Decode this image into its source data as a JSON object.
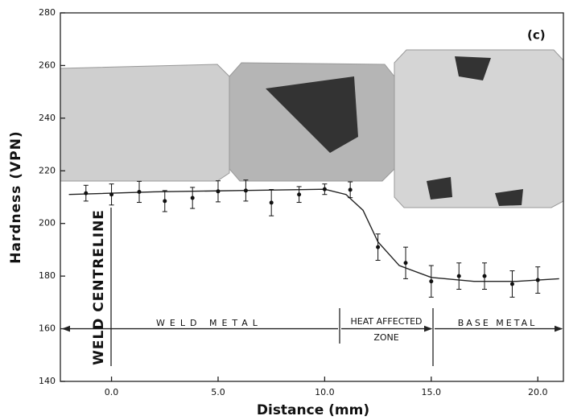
{
  "chart_data": {
    "type": "scatter",
    "panel_label": "(c)",
    "xlabel": "Distance (mm)",
    "ylabel": "Hardness (VPN)",
    "xlim": [
      -2.4,
      21.2
    ],
    "ylim": [
      140,
      280
    ],
    "xticks": [
      {
        "value": 0,
        "label": "0.0"
      },
      {
        "value": 5,
        "label": "5.0"
      },
      {
        "value": 10,
        "label": "10.0"
      },
      {
        "value": 15,
        "label": "15.0"
      },
      {
        "value": 20,
        "label": "20.0"
      }
    ],
    "yticks": [
      140,
      160,
      180,
      200,
      220,
      240,
      260,
      280
    ],
    "series": [
      {
        "color": "#111111",
        "x": [
          -1.2,
          0,
          1.3,
          2.5,
          3.8,
          5.0,
          6.3,
          7.5,
          8.8,
          10.0,
          11.2,
          12.5,
          13.8,
          15.0,
          16.3,
          17.5,
          18.8,
          20.0
        ],
        "values": [
          211.5,
          211,
          212,
          208.5,
          209.7,
          212.2,
          212.5,
          207.9,
          211,
          213,
          212.8,
          191,
          185,
          178,
          180,
          180,
          177,
          178.5
        ],
        "errors": [
          3,
          4,
          4,
          4,
          4,
          4,
          4,
          5,
          3,
          2,
          3,
          5,
          6,
          6,
          5,
          5,
          5,
          5
        ]
      }
    ],
    "curve": {
      "color": "#222222",
      "x": [
        -2,
        2,
        6,
        10,
        11,
        11.8,
        12.5,
        13.5,
        15,
        17,
        19,
        21
      ],
      "values": [
        211,
        212,
        212.5,
        213,
        211,
        205,
        193,
        184,
        179.5,
        178,
        178,
        179
      ]
    },
    "annotations": {
      "centreline": "WELD CENTRELINE",
      "weld_metal": "WELD METAL",
      "haz": [
        "HEAT AFFECTED",
        "ZONE"
      ],
      "base_metal": "BASE METAL"
    }
  }
}
